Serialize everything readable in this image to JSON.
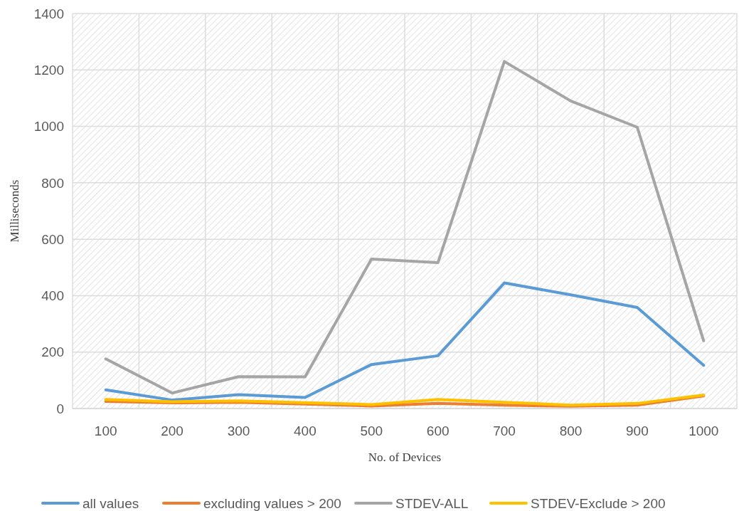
{
  "chart_data": {
    "type": "line",
    "xlabel": "No. of Devices",
    "ylabel": "Milliseconds",
    "categories": [
      "100",
      "200",
      "300",
      "400",
      "500",
      "600",
      "700",
      "800",
      "900",
      "1000"
    ],
    "ylim": [
      0,
      1400
    ],
    "yticks": [
      0,
      200,
      400,
      600,
      800,
      1000,
      1200,
      1400
    ],
    "grid": true,
    "legend": "bottom",
    "marker": "none",
    "series": [
      {
        "name": "all values",
        "color": "#5b9bd5",
        "values": [
          66,
          30,
          49,
          39,
          156,
          187,
          445,
          403,
          358,
          153
        ]
      },
      {
        "name": "excluding values > 200",
        "color": "#ed7d31",
        "values": [
          25,
          20,
          22,
          16,
          9,
          18,
          12,
          8,
          12,
          45
        ]
      },
      {
        "name": "STDEV-ALL",
        "color": "#a5a5a5",
        "values": [
          176,
          55,
          113,
          112,
          530,
          517,
          1230,
          1090,
          997,
          240
        ]
      },
      {
        "name": "STDEV-Exclude > 200",
        "color": "#ffc000",
        "values": [
          32,
          24,
          27,
          21,
          14,
          32,
          22,
          12,
          18,
          48
        ]
      }
    ]
  }
}
